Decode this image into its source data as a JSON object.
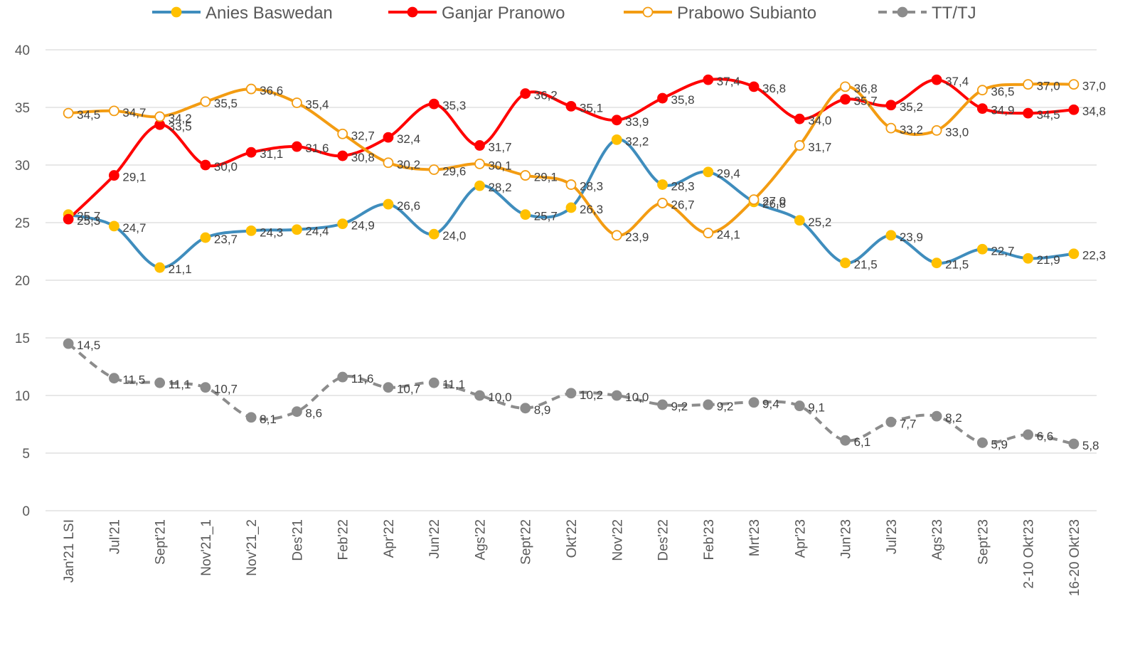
{
  "chart_data": {
    "type": "line",
    "categories": [
      "Jan'21 LSI",
      "Jul'21",
      "Sept'21",
      "Nov'21_1",
      "Nov'21_2",
      "Des'21",
      "Feb'22",
      "Apr'22",
      "Jun'22",
      "Ags'22",
      "Sept'22",
      "Okt'22",
      "Nov'22",
      "Des'22",
      "Feb'23",
      "Mrt'23",
      "Apr'23",
      "Jun'23",
      "Jul'23",
      "Ags'23",
      "Sept'23",
      "2-10 Okt'23",
      "16-20 Okt'23"
    ],
    "ylim": [
      0,
      40
    ],
    "yticks": [
      0,
      5,
      10,
      15,
      20,
      25,
      30,
      35,
      40
    ],
    "grid": true,
    "legend": "top",
    "smooth": true,
    "series": [
      {
        "name": "Anies Baswedan",
        "color": "#3f8dbd",
        "marker_fill": "#ffc000",
        "marker_stroke": "#ffc000",
        "dashed": false,
        "values": [
          25.7,
          24.7,
          21.1,
          23.7,
          24.3,
          24.4,
          24.9,
          26.6,
          24.0,
          28.2,
          25.7,
          26.3,
          32.2,
          28.3,
          29.4,
          26.8,
          25.2,
          21.5,
          23.9,
          21.5,
          22.7,
          21.9,
          22.3
        ],
        "value_labels": [
          "25,7",
          "24,7",
          "21,1",
          "23,7",
          "24,3",
          "24,4",
          "24,9",
          "26,6",
          "24,0",
          "28,2",
          "25,7",
          "26,3",
          "32,2",
          "28,3",
          "29,4",
          "26,8",
          "25,2",
          "21,5",
          "23,9",
          "21,5",
          "22,7",
          "21,9",
          "22,3"
        ]
      },
      {
        "name": "Ganjar Pranowo",
        "color": "#ff0000",
        "marker_fill": "#ff0000",
        "marker_stroke": "#ff0000",
        "dashed": false,
        "values": [
          25.3,
          29.1,
          33.5,
          30.0,
          31.1,
          31.6,
          30.8,
          32.4,
          35.3,
          31.7,
          36.2,
          35.1,
          33.9,
          35.8,
          37.4,
          36.8,
          34.0,
          35.7,
          35.2,
          37.4,
          34.9,
          34.5,
          34.8
        ],
        "value_labels": [
          "25,3",
          "29,1",
          "33,5",
          "30,0",
          "31,1",
          "31,6",
          "30,8",
          "32,4",
          "35,3",
          "31,7",
          "36,2",
          "35,1",
          "33,9",
          "35,8",
          "37,4",
          "36,8",
          "34,0",
          "35,7",
          "35,2",
          "37,4",
          "34,9",
          "34,5",
          "34,8"
        ]
      },
      {
        "name": "Prabowo Subianto",
        "color": "#f39c12",
        "marker_fill": "#ffffff",
        "marker_stroke": "#f39c12",
        "dashed": false,
        "values": [
          34.5,
          34.7,
          34.2,
          35.5,
          36.6,
          35.4,
          32.7,
          30.2,
          29.6,
          30.1,
          29.1,
          28.3,
          23.9,
          26.7,
          24.1,
          27.0,
          31.7,
          36.8,
          33.2,
          33.0,
          36.5,
          37.0,
          37.0
        ],
        "value_labels": [
          "34,5",
          "34,7",
          "34,2",
          "35,5",
          "36,6",
          "35,4",
          "32,7",
          "30,2",
          "29,6",
          "30,1",
          "29,1",
          "28,3",
          "23,9",
          "26,7",
          "24,1",
          "27,0",
          "31,7",
          "36,8",
          "33,2",
          "33,0",
          "36,5",
          "37,0",
          "37,0"
        ]
      },
      {
        "name": "TT/TJ",
        "color": "#8c8c8c",
        "marker_fill": "#8c8c8c",
        "marker_stroke": "#8c8c8c",
        "dashed": true,
        "values": [
          14.5,
          11.5,
          11.1,
          10.7,
          8.1,
          8.6,
          11.6,
          10.7,
          11.1,
          10.0,
          8.9,
          10.2,
          10.0,
          9.2,
          9.2,
          9.4,
          9.1,
          6.1,
          7.7,
          8.2,
          5.9,
          6.6,
          5.8
        ],
        "value_labels": [
          "14,5",
          "11,5",
          "11,1",
          "10,7",
          "8,1",
          "8,6",
          "11,6",
          "10,7",
          "11,1",
          "10,0",
          "8,9",
          "10,2",
          "10,0",
          "9,2",
          "9,2",
          "9,4",
          "9,1",
          "6,1",
          "7,7",
          "8,2",
          "5,9",
          "6,6",
          "5,8"
        ]
      }
    ]
  }
}
